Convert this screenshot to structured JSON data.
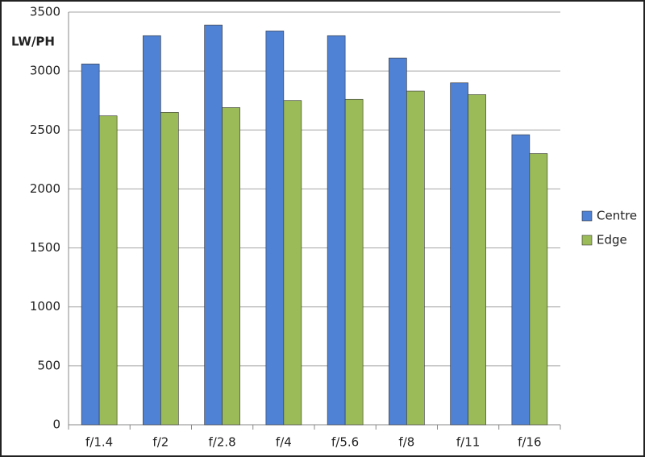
{
  "chart_data": {
    "type": "bar",
    "ylabel": "LW/PH",
    "categories": [
      "f/1.4",
      "f/2",
      "f/2.8",
      "f/4",
      "f/5.6",
      "f/8",
      "f/11",
      "f/16"
    ],
    "series": [
      {
        "name": "Centre",
        "color": "#4f81d4",
        "values": [
          3060,
          3300,
          3390,
          3340,
          3300,
          3110,
          2900,
          2460
        ]
      },
      {
        "name": "Edge",
        "color": "#9bbb59",
        "values": [
          2620,
          2650,
          2690,
          2750,
          2760,
          2830,
          2800,
          2300
        ]
      }
    ],
    "ylim": [
      0,
      3500
    ],
    "yticks": [
      0,
      500,
      1000,
      1500,
      2000,
      2500,
      3000,
      3500
    ],
    "grid": true,
    "legend": "right"
  }
}
